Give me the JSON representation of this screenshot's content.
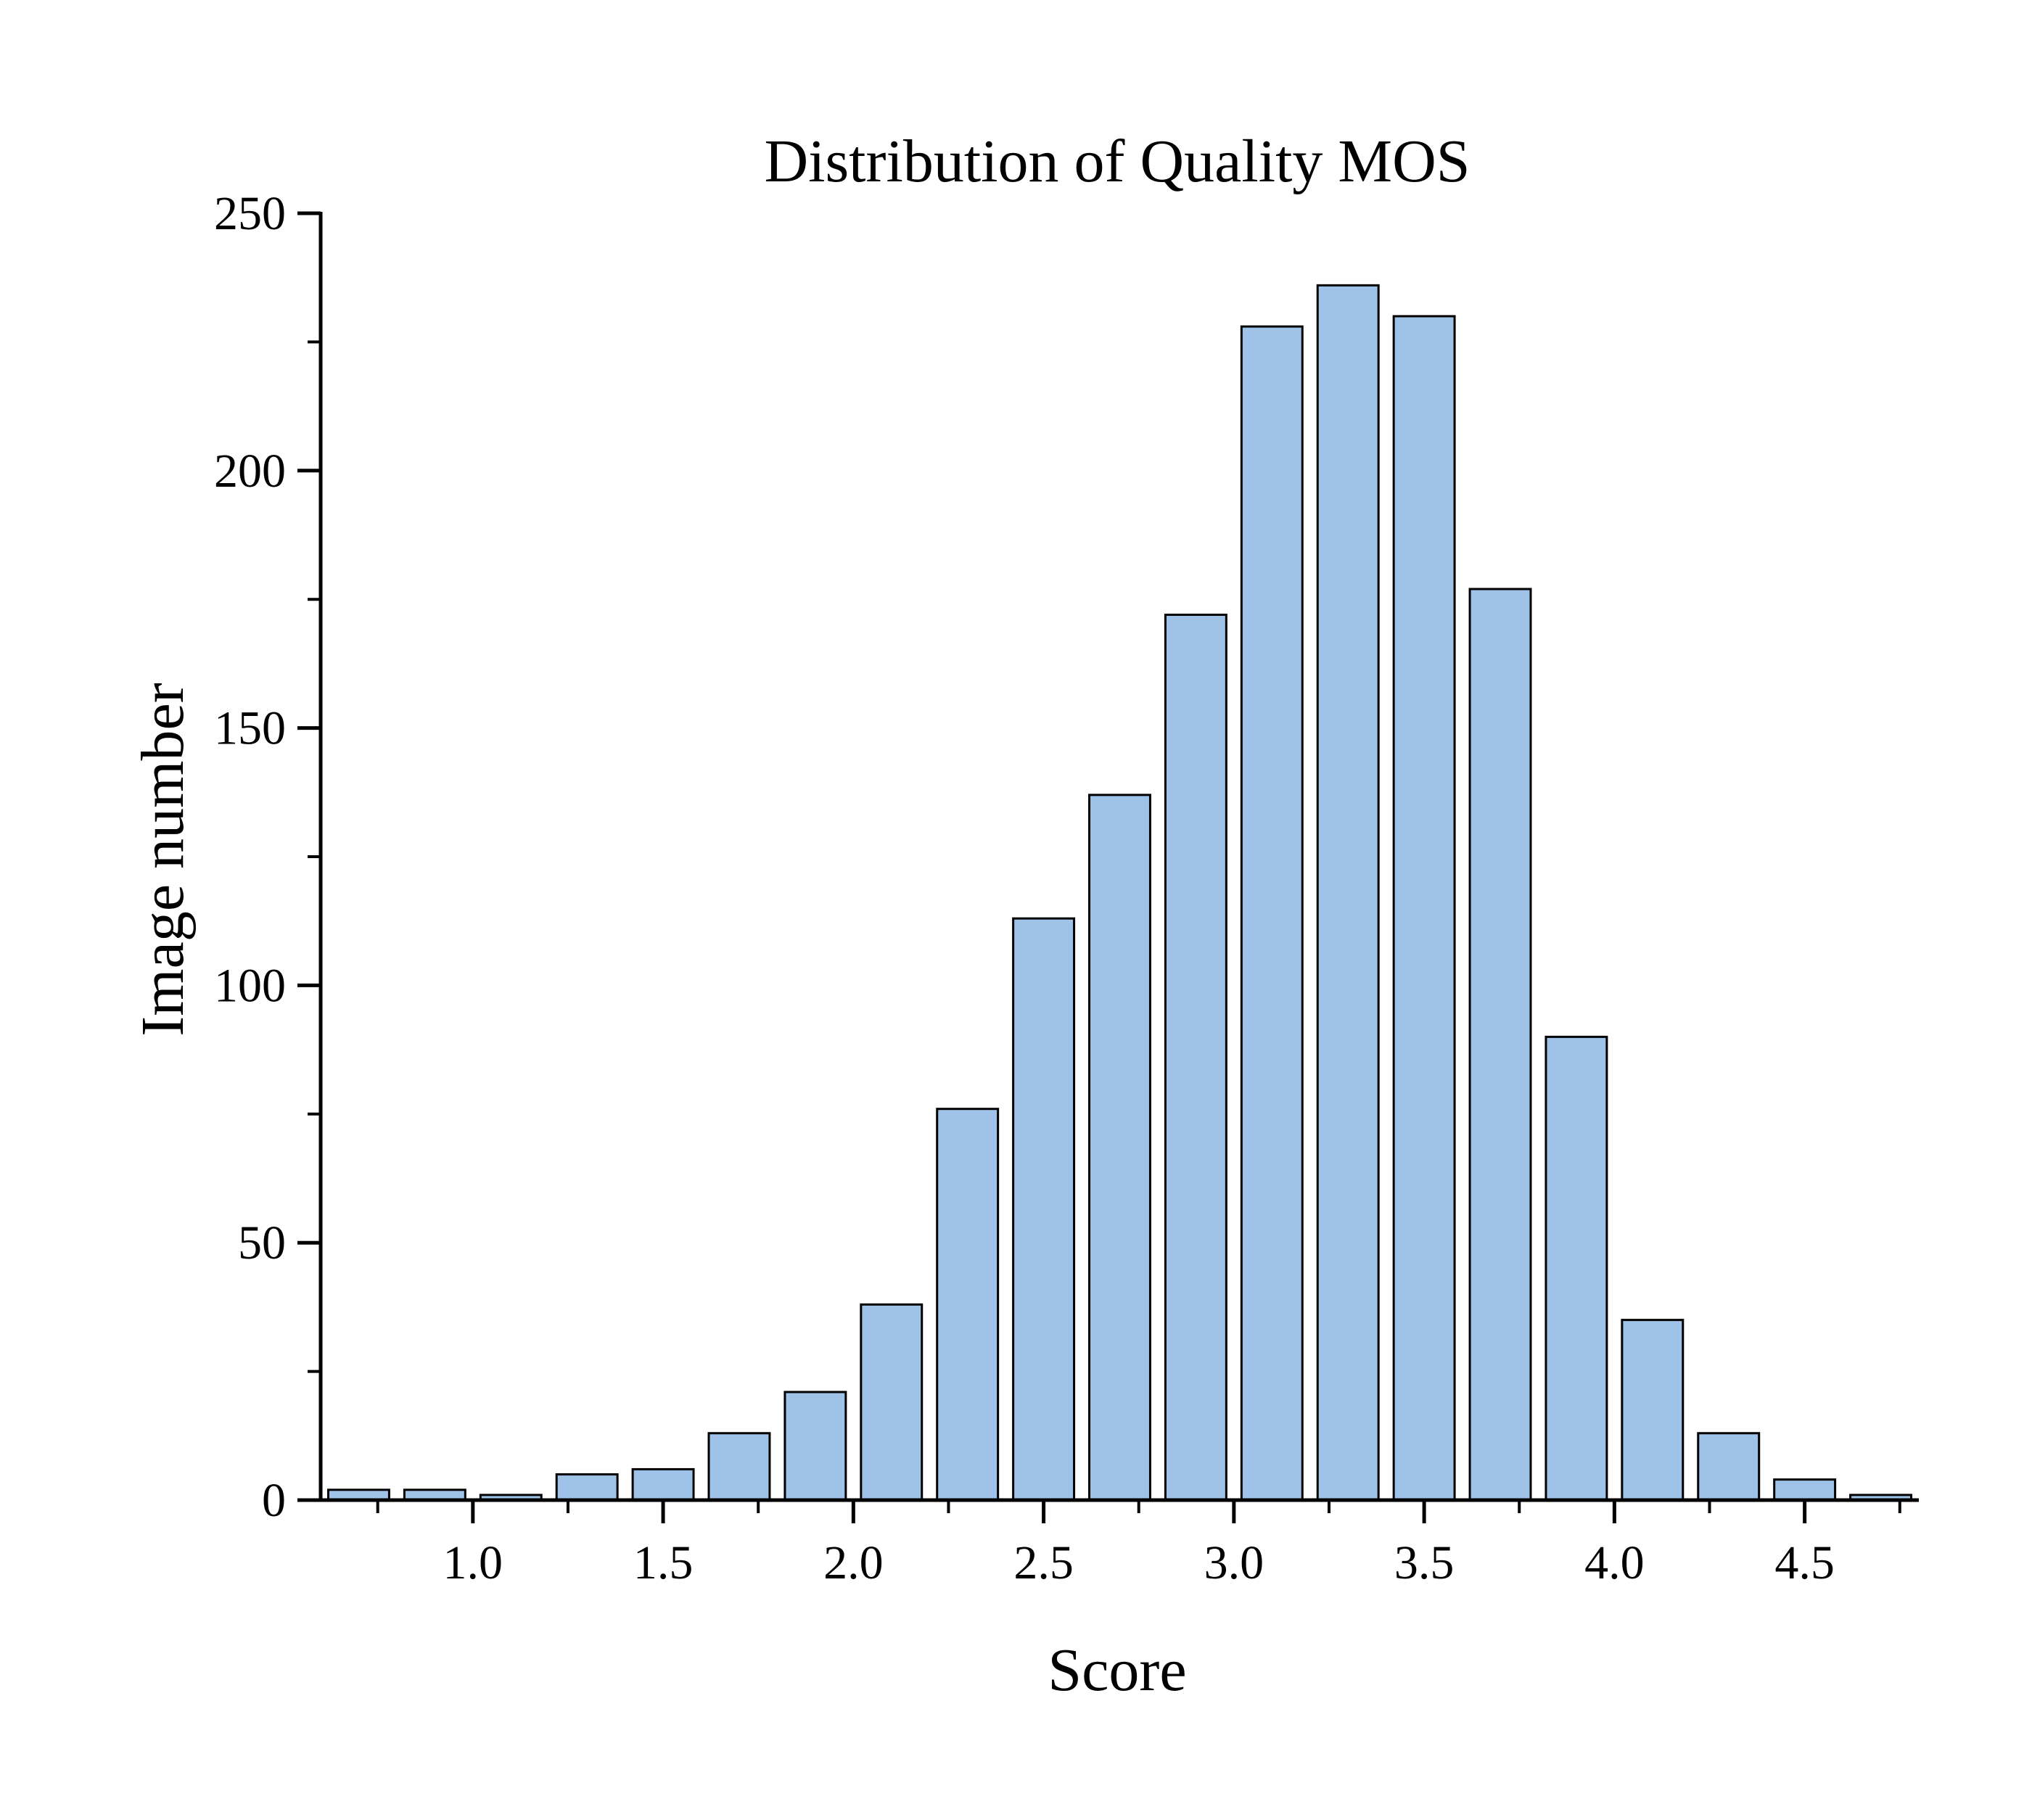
{
  "chart_data": {
    "type": "bar",
    "title": "Distribution of Quality MOS",
    "xlabel": "Score",
    "ylabel": "Image number",
    "bar_color": "#9fc3e8",
    "bar_edge_color": "#000000",
    "xlim": [
      0.6,
      4.8
    ],
    "ylim": [
      0,
      250
    ],
    "grid": false,
    "legend": "none",
    "x_ticks": [
      {
        "value": 1.0,
        "label": "1.0"
      },
      {
        "value": 1.5,
        "label": "1.5"
      },
      {
        "value": 2.0,
        "label": "2.0"
      },
      {
        "value": 2.5,
        "label": "2.5"
      },
      {
        "value": 3.0,
        "label": "3.0"
      },
      {
        "value": 3.5,
        "label": "3.5"
      },
      {
        "value": 4.0,
        "label": "4.0"
      },
      {
        "value": 4.5,
        "label": "4.5"
      }
    ],
    "y_ticks": [
      {
        "value": 0,
        "label": "0"
      },
      {
        "value": 50,
        "label": "50"
      },
      {
        "value": 100,
        "label": "100"
      },
      {
        "value": 150,
        "label": "150"
      },
      {
        "value": 200,
        "label": "200"
      },
      {
        "value": 250,
        "label": "250"
      }
    ],
    "bin_width": 0.2,
    "bin_centers": [
      0.7,
      0.9,
      1.1,
      1.3,
      1.5,
      1.7,
      1.9,
      2.1,
      2.3,
      2.5,
      2.7,
      2.9,
      3.1,
      3.3,
      3.5,
      3.7,
      3.9,
      4.1,
      4.3,
      4.5,
      4.7
    ],
    "values": [
      2,
      2,
      1,
      5,
      6,
      13,
      21,
      38,
      76,
      113,
      137,
      172,
      228,
      236,
      230,
      177,
      90,
      35,
      13,
      4,
      1
    ]
  }
}
